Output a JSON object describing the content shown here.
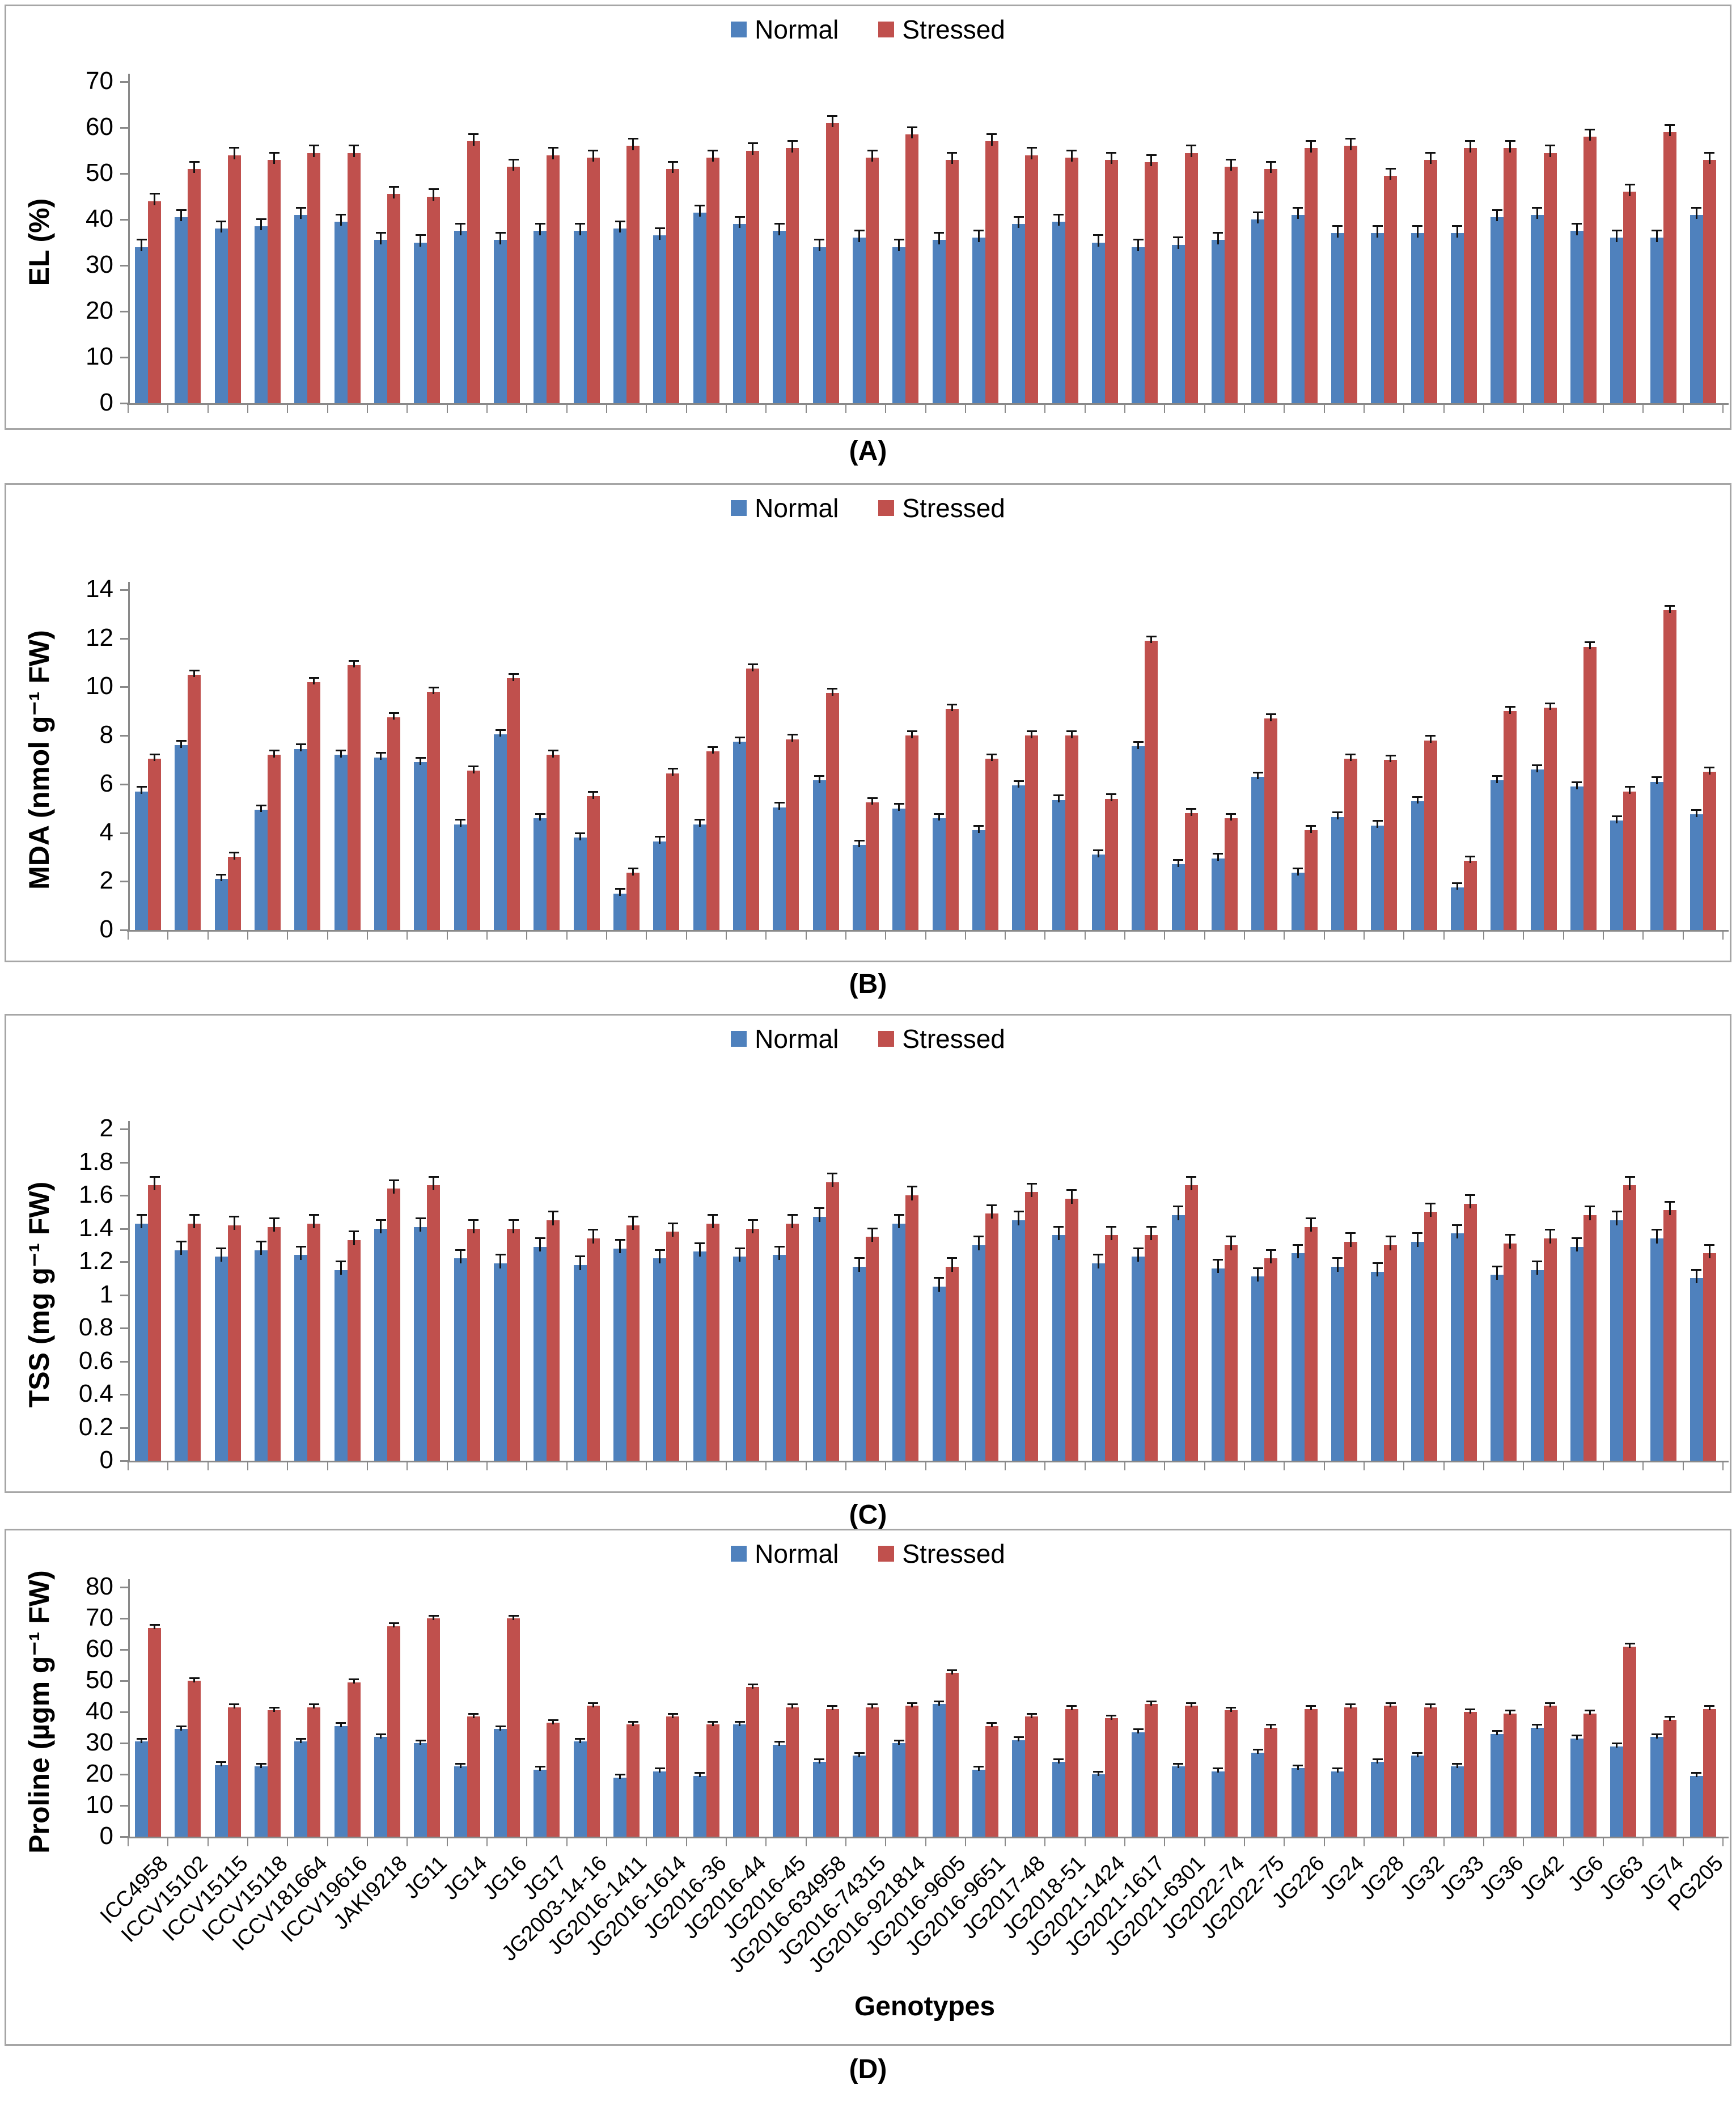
{
  "legend": {
    "normal_label": "Normal",
    "stressed_label": "Stressed"
  },
  "colors": {
    "normal": "#4F81BD",
    "stressed": "#C0504D",
    "axis": "#898989",
    "error_bar": "#111111",
    "panel_border": "#a6a6a6"
  },
  "xlabel": "Genotypes",
  "genotypes": [
    "ICC4958",
    "ICCV15102",
    "ICCV15115",
    "ICCV15118",
    "ICCV181664",
    "ICCV19616",
    "JAKI9218",
    "JG11",
    "JG14",
    "JG16",
    "JG17",
    "JG2003-14-16",
    "JG2016-1411",
    "JG2016-1614",
    "JG2016-36",
    "JG2016-44",
    "JG2016-45",
    "JG2016-634958",
    "JG2016-74315",
    "JG2016-921814",
    "JG2016-9605",
    "JG2016-9651",
    "JG2017-48",
    "JG2018-51",
    "JG2021-1424",
    "JG2021-1617",
    "JG2021-6301",
    "JG2022-74",
    "JG2022-75",
    "JG226",
    "JG24",
    "JG28",
    "JG32",
    "JG33",
    "JG36",
    "JG42",
    "JG6",
    "JG63",
    "JG74",
    "PG205"
  ],
  "chart_data": [
    {
      "id": "A",
      "type": "bar",
      "caption": "(A)",
      "ylabel": "EL (%)",
      "ylim": [
        0,
        70
      ],
      "ytick_step": 10,
      "yticks": [
        "0",
        "10",
        "20",
        "30",
        "40",
        "50",
        "60",
        "70"
      ],
      "legend_position": "top-center",
      "grid": false,
      "error_bar": 1.5,
      "categories": [
        "ICC4958",
        "ICCV15102",
        "ICCV15115",
        "ICCV15118",
        "ICCV181664",
        "ICCV19616",
        "JAKI9218",
        "JG11",
        "JG14",
        "JG16",
        "JG17",
        "JG2003-14-16",
        "JG2016-1411",
        "JG2016-1614",
        "JG2016-36",
        "JG2016-44",
        "JG2016-45",
        "JG2016-634958",
        "JG2016-74315",
        "JG2016-921814",
        "JG2016-9605",
        "JG2016-9651",
        "JG2017-48",
        "JG2018-51",
        "JG2021-1424",
        "JG2021-1617",
        "JG2021-6301",
        "JG2022-74",
        "JG2022-75",
        "JG226",
        "JG24",
        "JG28",
        "JG32",
        "JG33",
        "JG36",
        "JG42",
        "JG6",
        "JG63",
        "JG74",
        "PG205"
      ],
      "series": [
        {
          "name": "Normal",
          "values": [
            34,
            40.5,
            38,
            38.5,
            41,
            39.5,
            35.5,
            35,
            37.5,
            35.5,
            37.5,
            37.5,
            38,
            36.5,
            41.5,
            39,
            37.5,
            34,
            36,
            34,
            35.5,
            36,
            39,
            39.5,
            35,
            34,
            34.5,
            35.5,
            40,
            41,
            37,
            37,
            37,
            37,
            40.5,
            41,
            37.5,
            36,
            36,
            41
          ]
        },
        {
          "name": "Stressed",
          "values": [
            44,
            51,
            54,
            53,
            54.5,
            54.5,
            45.5,
            45,
            57,
            51.5,
            54,
            53.5,
            56,
            51,
            53.5,
            55,
            55.5,
            61,
            53.5,
            58.5,
            53,
            57,
            54,
            53.5,
            53,
            52.5,
            54.5,
            51.5,
            51,
            55.5,
            56,
            49.5,
            53,
            55.5,
            55.5,
            54.5,
            58,
            46,
            59,
            53
          ]
        }
      ]
    },
    {
      "id": "B",
      "type": "bar",
      "caption": "(B)",
      "ylabel": "MDA (nmol g⁻¹ FW)",
      "ylim": [
        0,
        14
      ],
      "ytick_step": 2,
      "yticks": [
        "0",
        "2",
        "4",
        "6",
        "8",
        "10",
        "12",
        "14"
      ],
      "legend_position": "top-center",
      "grid": false,
      "error_bar": 0.17,
      "categories": [
        "ICC4958",
        "ICCV15102",
        "ICCV15115",
        "ICCV15118",
        "ICCV181664",
        "ICCV19616",
        "JAKI9218",
        "JG11",
        "JG14",
        "JG16",
        "JG17",
        "JG2003-14-16",
        "JG2016-1411",
        "JG2016-1614",
        "JG2016-36",
        "JG2016-44",
        "JG2016-45",
        "JG2016-634958",
        "JG2016-74315",
        "JG2016-921814",
        "JG2016-9605",
        "JG2016-9651",
        "JG2017-48",
        "JG2018-51",
        "JG2021-1424",
        "JG2021-1617",
        "JG2021-6301",
        "JG2022-74",
        "JG2022-75",
        "JG226",
        "JG24",
        "JG28",
        "JG32",
        "JG33",
        "JG36",
        "JG42",
        "JG6",
        "JG63",
        "JG74",
        "PG205"
      ],
      "series": [
        {
          "name": "Normal",
          "values": [
            5.7,
            7.6,
            2.1,
            4.95,
            7.45,
            7.2,
            7.1,
            6.9,
            4.35,
            8.05,
            4.6,
            3.8,
            1.5,
            3.65,
            4.35,
            7.75,
            5.05,
            6.15,
            3.5,
            5.0,
            4.6,
            4.1,
            5.95,
            5.35,
            3.1,
            7.55,
            2.7,
            2.95,
            6.3,
            2.35,
            4.65,
            4.3,
            5.3,
            1.75,
            6.15,
            6.6,
            5.9,
            4.5,
            6.1,
            4.75
          ]
        },
        {
          "name": "Stressed",
          "values": [
            7.05,
            10.5,
            3.0,
            7.2,
            10.2,
            10.9,
            8.75,
            9.8,
            6.55,
            10.35,
            7.2,
            5.5,
            2.35,
            6.45,
            7.35,
            10.75,
            7.85,
            9.75,
            5.25,
            8.0,
            9.1,
            7.05,
            8.0,
            8.0,
            5.4,
            11.9,
            4.8,
            4.6,
            8.7,
            4.1,
            7.05,
            7.0,
            7.8,
            2.85,
            9.0,
            9.15,
            11.65,
            5.7,
            13.15,
            6.5
          ]
        }
      ]
    },
    {
      "id": "C",
      "type": "bar",
      "caption": "(C)",
      "ylabel": "TSS (mg g⁻¹ FW)",
      "ylim": [
        0,
        2
      ],
      "ytick_step": 0.2,
      "yticks": [
        "0",
        "0.2",
        "0.4",
        "0.6",
        "0.8",
        "1",
        "1.2",
        "1.4",
        "1.6",
        "1.8",
        "2"
      ],
      "legend_position": "top-center",
      "grid": false,
      "error_bar": 0.05,
      "categories": [
        "ICC4958",
        "ICCV15102",
        "ICCV15115",
        "ICCV15118",
        "ICCV181664",
        "ICCV19616",
        "JAKI9218",
        "JG11",
        "JG14",
        "JG16",
        "JG17",
        "JG2003-14-16",
        "JG2016-1411",
        "JG2016-1614",
        "JG2016-36",
        "JG2016-44",
        "JG2016-45",
        "JG2016-634958",
        "JG2016-74315",
        "JG2016-921814",
        "JG2016-9605",
        "JG2016-9651",
        "JG2017-48",
        "JG2018-51",
        "JG2021-1424",
        "JG2021-1617",
        "JG2021-6301",
        "JG2022-74",
        "JG2022-75",
        "JG226",
        "JG24",
        "JG28",
        "JG32",
        "JG33",
        "JG36",
        "JG42",
        "JG6",
        "JG63",
        "JG74",
        "PG205"
      ],
      "series": [
        {
          "name": "Normal",
          "values": [
            1.43,
            1.27,
            1.23,
            1.27,
            1.24,
            1.15,
            1.4,
            1.41,
            1.22,
            1.19,
            1.29,
            1.18,
            1.28,
            1.22,
            1.26,
            1.23,
            1.24,
            1.47,
            1.17,
            1.43,
            1.05,
            1.3,
            1.45,
            1.36,
            1.19,
            1.23,
            1.48,
            1.16,
            1.11,
            1.25,
            1.17,
            1.14,
            1.32,
            1.37,
            1.12,
            1.15,
            1.29,
            1.45,
            1.34,
            1.1
          ]
        },
        {
          "name": "Stressed",
          "values": [
            1.66,
            1.43,
            1.42,
            1.41,
            1.43,
            1.33,
            1.64,
            1.66,
            1.4,
            1.4,
            1.45,
            1.34,
            1.42,
            1.38,
            1.43,
            1.4,
            1.43,
            1.68,
            1.35,
            1.6,
            1.17,
            1.49,
            1.62,
            1.58,
            1.36,
            1.36,
            1.66,
            1.3,
            1.22,
            1.41,
            1.32,
            1.3,
            1.5,
            1.55,
            1.31,
            1.34,
            1.48,
            1.66,
            1.51,
            1.25
          ]
        }
      ]
    },
    {
      "id": "D",
      "type": "bar",
      "caption": "(D)",
      "ylabel": "Proline (µgm g⁻¹ FW)",
      "xlabel": "Genotypes",
      "ylim": [
        0,
        80
      ],
      "ytick_step": 10,
      "yticks": [
        "0",
        "10",
        "20",
        "30",
        "40",
        "50",
        "60",
        "70",
        "80"
      ],
      "legend_position": "top-center",
      "grid": false,
      "error_bar": 0.8,
      "categories": [
        "ICC4958",
        "ICCV15102",
        "ICCV15115",
        "ICCV15118",
        "ICCV181664",
        "ICCV19616",
        "JAKI9218",
        "JG11",
        "JG14",
        "JG16",
        "JG17",
        "JG2003-14-16",
        "JG2016-1411",
        "JG2016-1614",
        "JG2016-36",
        "JG2016-44",
        "JG2016-45",
        "JG2016-634958",
        "JG2016-74315",
        "JG2016-921814",
        "JG2016-9605",
        "JG2016-9651",
        "JG2017-48",
        "JG2018-51",
        "JG2021-1424",
        "JG2021-1617",
        "JG2021-6301",
        "JG2022-74",
        "JG2022-75",
        "JG226",
        "JG24",
        "JG28",
        "JG32",
        "JG33",
        "JG36",
        "JG42",
        "JG6",
        "JG63",
        "JG74",
        "PG205"
      ],
      "series": [
        {
          "name": "Normal",
          "values": [
            30.5,
            34.5,
            23,
            22.5,
            30.5,
            35.5,
            32,
            30,
            22.5,
            34.5,
            21.5,
            30.5,
            19,
            21,
            19.5,
            36,
            29.5,
            24,
            26,
            30,
            42.5,
            21.5,
            31,
            24,
            20,
            33.5,
            22.5,
            21,
            27,
            22,
            21,
            24,
            26,
            22.5,
            33,
            35,
            31.5,
            29,
            32,
            19.5
          ]
        },
        {
          "name": "Stressed",
          "values": [
            67,
            50,
            41.5,
            40.5,
            41.5,
            49.5,
            67.5,
            70,
            38.5,
            70,
            36.5,
            42,
            36,
            38.5,
            36,
            48,
            41.5,
            41,
            41.5,
            42,
            52.5,
            35.5,
            38.5,
            41,
            38,
            42.5,
            42,
            40.5,
            35,
            41,
            41.5,
            42,
            41.5,
            40,
            39.5,
            42,
            39.5,
            61,
            37.5,
            41
          ]
        }
      ]
    }
  ]
}
